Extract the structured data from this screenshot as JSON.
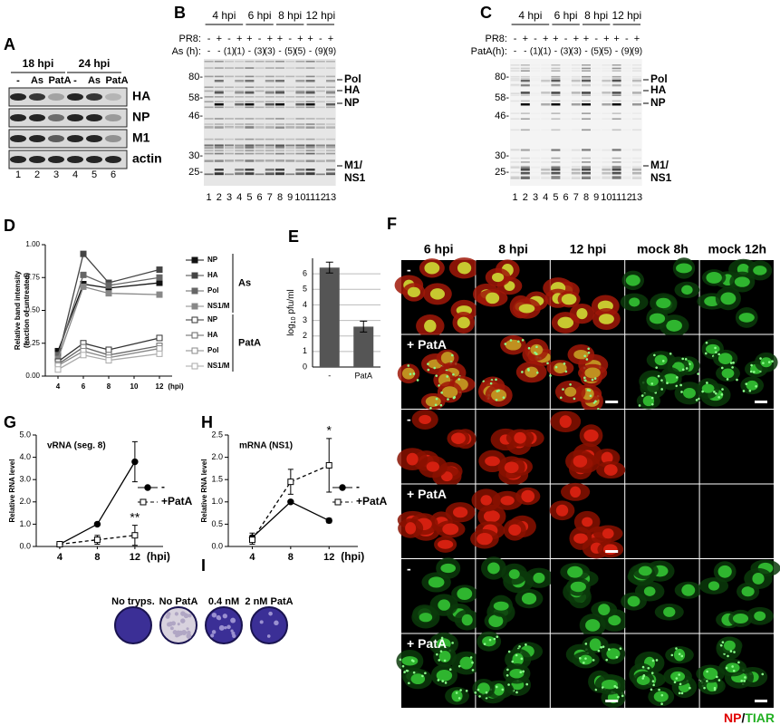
{
  "figure": {
    "A": {
      "panel": "A",
      "groups": [
        "18 hpi",
        "24 hpi"
      ],
      "treatments": [
        "-",
        "As",
        "PatA",
        "-",
        "As",
        "PatA"
      ],
      "proteins": [
        "HA",
        "NP",
        "M1",
        "actin"
      ],
      "lanes": [
        "1",
        "2",
        "3",
        "4",
        "5",
        "6"
      ]
    },
    "B": {
      "panel": "B",
      "times": [
        "4 hpi",
        "6 hpi",
        "8 hpi",
        "12 hpi"
      ],
      "row_labels": [
        "PR8:",
        "As (h):"
      ],
      "pr8": [
        "-",
        "+",
        "-",
        "+",
        "+",
        "-",
        "+",
        "+",
        "-",
        "+",
        "+",
        "-",
        "+"
      ],
      "drug": [
        "-",
        "-",
        "(1)",
        "(1)",
        "-",
        "(3)",
        "(3)",
        "-",
        "(5)",
        "(5)",
        "-",
        "(9)",
        "(9)"
      ],
      "markers": [
        "80-",
        "58-",
        "46-",
        "30-",
        "25-"
      ],
      "bands": [
        "Pol",
        "HA",
        "NP",
        "M1/",
        "NS1"
      ],
      "lanes": [
        "1",
        "2",
        "3",
        "4",
        "5",
        "6",
        "7",
        "8",
        "9",
        "10",
        "11",
        "12",
        "13"
      ]
    },
    "C": {
      "panel": "C",
      "times": [
        "4 hpi",
        "6 hpi",
        "8 hpi",
        "12 hpi"
      ],
      "row_labels": [
        "PR8:",
        "PatA(h):"
      ],
      "pr8": [
        "-",
        "+",
        "-",
        "+",
        "+",
        "-",
        "+",
        "+",
        "-",
        "+",
        "+",
        "-",
        "+"
      ],
      "drug": [
        "-",
        "-",
        "(1)",
        "(1)",
        "-",
        "(3)",
        "(3)",
        "-",
        "(5)",
        "(5)",
        "-",
        "(9)",
        "(9)"
      ],
      "markers": [
        "80-",
        "58-",
        "46-",
        "30-",
        "25-"
      ],
      "bands": [
        "Pol",
        "HA",
        "NP",
        "M1/",
        "NS1"
      ],
      "lanes": [
        "1",
        "2",
        "3",
        "4",
        "5",
        "6",
        "7",
        "8",
        "9",
        "10",
        "11",
        "12",
        "13"
      ]
    },
    "F": {
      "panel": "F",
      "columns": [
        "6 hpi",
        "8 hpi",
        "12 hpi",
        "mock 8h",
        "mock 12h"
      ],
      "rows": [
        "-",
        "+ PatA",
        "-",
        "+ PatA",
        "-",
        "+ PatA"
      ],
      "legend": [
        "NP",
        "/",
        "TIAR"
      ]
    },
    "I": {
      "panel": "I",
      "labels": [
        "No tryps.",
        "No PatA",
        "0.4 nM",
        "2 nM PatA"
      ]
    }
  },
  "chart_data": [
    {
      "panel": "D",
      "type": "line",
      "ylabel": [
        "Relative band intensity",
        "(fraction of untreated)"
      ],
      "x": [
        4,
        6,
        8,
        12
      ],
      "xlim": [
        3,
        13
      ],
      "xticks": [
        4,
        6,
        8,
        10,
        12
      ],
      "xunit": "(hpi)",
      "ylim": [
        0,
        1
      ],
      "yticks": [
        {
          "value": 0,
          "label": "0.00"
        },
        {
          "value": 0.25,
          "label": "0.25"
        },
        {
          "value": 0.5,
          "label": "0.50"
        },
        {
          "value": 0.75,
          "label": "0.75"
        },
        {
          "value": 1,
          "label": "1.00"
        }
      ],
      "groups": [
        {
          "name": "As",
          "marker": "filled square",
          "series": [
            {
              "name": "NP",
              "color": "#111111",
              "values": [
                0.19,
                0.7,
                0.67,
                0.71
              ]
            },
            {
              "name": "HA",
              "color": "#444444",
              "values": [
                0.14,
                0.93,
                0.71,
                0.81
              ]
            },
            {
              "name": "Pol",
              "color": "#666666",
              "values": [
                0.16,
                0.77,
                0.69,
                0.75
              ]
            },
            {
              "name": "NS1/M",
              "color": "#888888",
              "values": [
                0.13,
                0.68,
                0.63,
                0.62
              ]
            }
          ]
        },
        {
          "name": "PatA",
          "marker": "open square",
          "series": [
            {
              "name": "NP",
              "color": "#333333",
              "values": [
                0.11,
                0.25,
                0.2,
                0.29
              ]
            },
            {
              "name": "HA",
              "color": "#666666",
              "values": [
                0.09,
                0.22,
                0.16,
                0.23
              ]
            },
            {
              "name": "Pol",
              "color": "#888888",
              "values": [
                0.08,
                0.19,
                0.14,
                0.21
              ]
            },
            {
              "name": "NS1/M",
              "color": "#aaaaaa",
              "values": [
                0.05,
                0.16,
                0.12,
                0.17
              ]
            }
          ]
        }
      ]
    },
    {
      "panel": "E",
      "type": "bar",
      "categories": [
        "-",
        "PatA"
      ],
      "values": [
        6.4,
        2.6
      ],
      "errors": [
        0.35,
        0.35
      ],
      "color": "#555555",
      "ylim": [
        0,
        7
      ],
      "yticks": [
        0,
        1,
        2,
        3,
        4,
        5,
        6
      ],
      "grid": true,
      "ylabel": [
        "log",
        "10",
        "pfu/ml"
      ]
    },
    {
      "panel": "G",
      "type": "line",
      "title": "vRNA (seg. 8)",
      "ylabel": "Relative RNA level",
      "x": [
        4,
        8,
        12
      ],
      "xlim": [
        1.5,
        15
      ],
      "xticks": [
        4,
        8,
        12
      ],
      "xunit": "(hpi)",
      "ylim": [
        0,
        5
      ],
      "yticks": [
        {
          "value": 0,
          "label": "0.0"
        },
        {
          "value": 1,
          "label": "1.0"
        },
        {
          "value": 2,
          "label": "2.0"
        },
        {
          "value": 3,
          "label": "3.0"
        },
        {
          "value": 4,
          "label": "4.0"
        },
        {
          "value": 5,
          "label": "5.0"
        }
      ],
      "annotation": "**",
      "series": [
        {
          "name": "-",
          "color": "#000000",
          "marker": "filled circle",
          "dash": false,
          "values": [
            0.1,
            1.0,
            3.8
          ],
          "errors": [
            0.02,
            0.04,
            0.9
          ]
        },
        {
          "name": "+PatA",
          "color": "#000000",
          "marker": "open square",
          "dash": true,
          "values": [
            0.1,
            0.3,
            0.5
          ],
          "errors": [
            0.03,
            0.2,
            0.45
          ]
        }
      ]
    },
    {
      "panel": "H",
      "type": "line",
      "title": "mRNA (NS1)",
      "ylabel": "Relative RNA level",
      "x": [
        4,
        8,
        12
      ],
      "xlim": [
        1.5,
        15
      ],
      "xticks": [
        4,
        8,
        12
      ],
      "xunit": "(hpi)",
      "ylim": [
        0,
        2.5
      ],
      "yticks": [
        {
          "value": 0,
          "label": "0.0"
        },
        {
          "value": 0.5,
          "label": "0.5"
        },
        {
          "value": 1,
          "label": "1.0"
        },
        {
          "value": 1.5,
          "label": "1.5"
        },
        {
          "value": 2,
          "label": "2.0"
        },
        {
          "value": 2.5,
          "label": "2.5"
        }
      ],
      "annotation": "*",
      "series": [
        {
          "name": "-",
          "color": "#000000",
          "marker": "filled circle",
          "dash": false,
          "values": [
            0.2,
            1.0,
            0.58
          ],
          "errors": [
            0.1,
            0.03,
            0.05
          ]
        },
        {
          "name": "+PatA",
          "color": "#000000",
          "marker": "open square",
          "dash": true,
          "values": [
            0.15,
            1.45,
            1.82
          ],
          "errors": [
            0.1,
            0.28,
            0.6
          ]
        }
      ]
    }
  ]
}
